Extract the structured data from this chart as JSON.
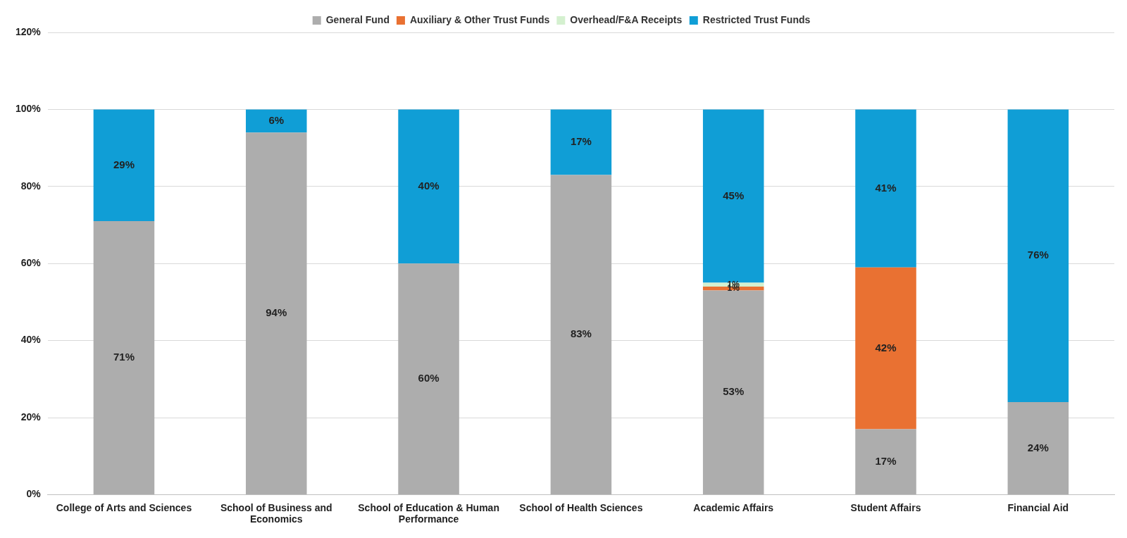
{
  "chart_data": {
    "type": "bar",
    "stacked": true,
    "categories": [
      "College of Arts and Sciences",
      "School of Business and Economics",
      "School of Education & Human Performance",
      "School of Health Sciences",
      "Academic Affairs",
      "Student Affairs",
      "Financial Aid"
    ],
    "series": [
      {
        "name": "General Fund",
        "color": "#adadad",
        "values": [
          71,
          94,
          60,
          83,
          53,
          17,
          24
        ],
        "value_labels": [
          "71%",
          "94%",
          "60%",
          "83%",
          "53%",
          "17%",
          "24%"
        ]
      },
      {
        "name": "Auxiliary & Other Trust Funds",
        "color": "#e97132",
        "values": [
          null,
          null,
          null,
          null,
          1,
          42,
          null
        ],
        "value_labels": [
          null,
          null,
          null,
          null,
          "1%",
          "42%",
          null
        ]
      },
      {
        "name": "Overhead/F&A Receipts",
        "color": "#d4f0cf",
        "values": [
          null,
          null,
          null,
          null,
          1,
          null,
          null
        ],
        "value_labels": [
          null,
          null,
          null,
          null,
          "1%",
          null,
          null
        ]
      },
      {
        "name": "Restricted Trust Funds",
        "color": "#109ed6",
        "values": [
          29,
          6,
          40,
          17,
          45,
          41,
          76
        ],
        "value_labels": [
          "29%",
          "6%",
          "40%",
          "17%",
          "45%",
          "41%",
          "76%"
        ]
      }
    ],
    "ylim": [
      0,
      120
    ],
    "yticks": [
      {
        "value": 0,
        "label": "0%"
      },
      {
        "value": 20,
        "label": "20%"
      },
      {
        "value": 40,
        "label": "40%"
      },
      {
        "value": 60,
        "label": "60%"
      },
      {
        "value": 80,
        "label": "80%"
      },
      {
        "value": 100,
        "label": "100%"
      },
      {
        "value": 120,
        "label": "120%"
      }
    ],
    "grid": "y",
    "legend": "top"
  }
}
